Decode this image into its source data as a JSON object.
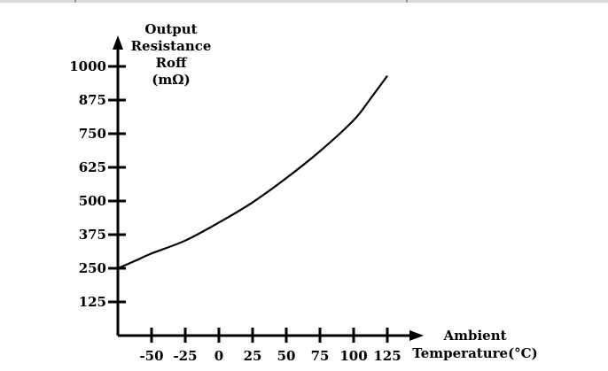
{
  "chart_data": {
    "type": "line",
    "ylabel_lines": [
      "Output",
      "Resistance",
      "Roff",
      "(mΩ)"
    ],
    "xlabel_lines": [
      "Ambient",
      "Temperature(°C)"
    ],
    "x_ticks": [
      -50,
      -25,
      0,
      25,
      50,
      75,
      100,
      125
    ],
    "y_ticks": [
      125,
      250,
      375,
      500,
      625,
      750,
      875,
      1000
    ],
    "xlim": [
      -75,
      125
    ],
    "ylim": [
      0,
      1000
    ],
    "series": [
      {
        "x": [
          -75,
          -62.5,
          -50,
          -25,
          0,
          25,
          50,
          75,
          100,
          112.5,
          125
        ],
        "y": [
          250,
          277,
          305,
          353,
          420,
          495,
          585,
          685,
          800,
          880,
          965
        ]
      }
    ],
    "grid": false,
    "legend": "none"
  }
}
